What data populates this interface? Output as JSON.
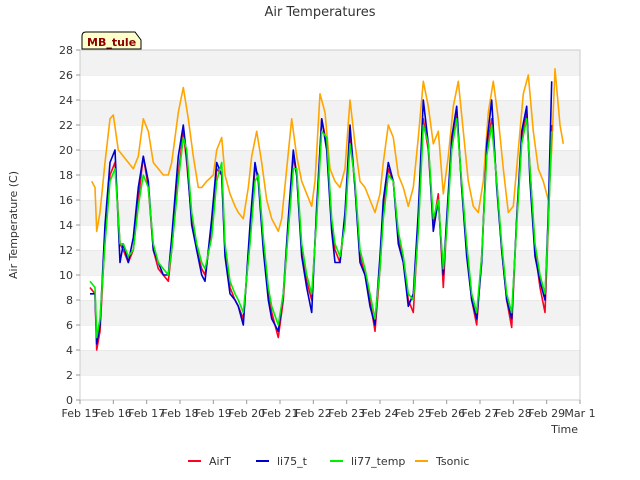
{
  "chart_data": {
    "type": "line",
    "title": "Air Temperatures",
    "xlabel": "Time",
    "ylabel": "Air Temperature (C)",
    "station_badge": "MB_tule",
    "ylim": [
      0,
      28
    ],
    "yticks": [
      0,
      2,
      4,
      6,
      8,
      10,
      12,
      14,
      16,
      18,
      20,
      22,
      24,
      26,
      28
    ],
    "xlim": [
      15,
      30
    ],
    "xticks": [
      15,
      16,
      17,
      18,
      19,
      20,
      21,
      22,
      23,
      24,
      25,
      26,
      27,
      28,
      29,
      30
    ],
    "xtick_labels": [
      "Feb 15",
      "Feb 16",
      "Feb 17",
      "Feb 18",
      "Feb 19",
      "Feb 20",
      "Feb 21",
      "Feb 22",
      "Feb 23",
      "Feb 24",
      "Feb 25",
      "Feb 26",
      "Feb 27",
      "Feb 28",
      "Feb 29",
      "Mar 1"
    ],
    "x_unit": "day of February 2024",
    "grid": "horizontal bands",
    "legend_position": "bottom",
    "series": [
      {
        "name": "AirT",
        "color": "#ff0022",
        "x": [
          15.3,
          15.45,
          15.5,
          15.6,
          15.75,
          15.9,
          16.05,
          16.2,
          16.3,
          16.45,
          16.6,
          16.75,
          16.9,
          17.05,
          17.2,
          17.35,
          17.5,
          17.65,
          17.75,
          17.95,
          18.1,
          18.2,
          18.35,
          18.5,
          18.65,
          18.75,
          18.95,
          19.1,
          19.25,
          19.35,
          19.5,
          19.65,
          19.75,
          19.9,
          20.1,
          20.25,
          20.35,
          20.5,
          20.65,
          20.75,
          20.95,
          21.1,
          21.25,
          21.4,
          21.5,
          21.65,
          21.8,
          21.95,
          22.1,
          22.25,
          22.4,
          22.55,
          22.65,
          22.8,
          22.95,
          23.1,
          23.25,
          23.4,
          23.55,
          23.7,
          23.85,
          24.0,
          24.1,
          24.25,
          24.4,
          24.55,
          24.7,
          24.85,
          25.0,
          25.15,
          25.3,
          25.45,
          25.6,
          25.75,
          25.9,
          26.0,
          26.15,
          26.3,
          26.45,
          26.6,
          26.75,
          26.9,
          27.05,
          27.2,
          27.35,
          27.5,
          27.65,
          27.8,
          27.95,
          28.1,
          28.25,
          28.4,
          28.5,
          28.65,
          28.8,
          28.95,
          29.05,
          29.15
        ],
        "values": [
          9.0,
          8.5,
          4.0,
          5.5,
          13.0,
          18.0,
          19.0,
          12.5,
          12.0,
          11.0,
          12.0,
          16.0,
          19.5,
          17.0,
          12.0,
          10.5,
          10.0,
          9.5,
          12.0,
          18.0,
          21.5,
          19.0,
          14.5,
          12.0,
          10.5,
          10.0,
          13.5,
          18.5,
          18.0,
          12.0,
          9.0,
          8.0,
          7.5,
          6.5,
          13.0,
          18.5,
          18.0,
          12.5,
          8.5,
          7.0,
          5.0,
          8.0,
          14.0,
          19.5,
          18.0,
          12.0,
          9.5,
          8.0,
          15.0,
          22.5,
          20.5,
          14.0,
          12.0,
          11.0,
          14.5,
          21.5,
          17.0,
          11.5,
          10.0,
          8.0,
          5.5,
          10.5,
          15.0,
          18.5,
          17.5,
          13.0,
          11.0,
          8.0,
          7.0,
          14.0,
          22.5,
          20.0,
          14.0,
          16.5,
          9.0,
          14.0,
          20.5,
          23.0,
          17.0,
          12.0,
          8.0,
          6.0,
          11.5,
          20.0,
          22.5,
          17.5,
          12.0,
          8.0,
          5.8,
          14.5,
          21.0,
          23.0,
          18.5,
          12.0,
          9.0,
          7.0,
          14.0,
          22.0
        ]
      },
      {
        "name": "li75_t",
        "color": "#0000cc",
        "x": [
          15.3,
          15.45,
          15.5,
          15.6,
          15.75,
          15.9,
          16.05,
          16.2,
          16.3,
          16.45,
          16.6,
          16.75,
          16.9,
          17.05,
          17.2,
          17.35,
          17.5,
          17.65,
          17.75,
          17.95,
          18.1,
          18.2,
          18.35,
          18.5,
          18.65,
          18.75,
          18.95,
          19.1,
          19.25,
          19.35,
          19.5,
          19.65,
          19.75,
          19.9,
          20.1,
          20.25,
          20.35,
          20.5,
          20.65,
          20.75,
          20.95,
          21.1,
          21.25,
          21.4,
          21.5,
          21.65,
          21.8,
          21.95,
          22.1,
          22.25,
          22.4,
          22.55,
          22.65,
          22.8,
          22.95,
          23.1,
          23.25,
          23.4,
          23.55,
          23.7,
          23.85,
          24.0,
          24.1,
          24.25,
          24.4,
          24.55,
          24.7,
          24.85,
          25.0,
          25.15,
          25.3,
          25.45,
          25.6,
          25.75,
          25.9,
          26.0,
          26.15,
          26.3,
          26.45,
          26.6,
          26.75,
          26.9,
          27.05,
          27.2,
          27.35,
          27.5,
          27.65,
          27.8,
          27.95,
          28.1,
          28.25,
          28.4,
          28.5,
          28.65,
          28.8,
          28.95,
          29.05,
          29.15
        ],
        "values": [
          8.5,
          8.5,
          4.5,
          6.0,
          14.0,
          19.0,
          20.0,
          11.0,
          12.5,
          11.0,
          13.0,
          17.0,
          19.5,
          17.5,
          12.0,
          11.0,
          10.0,
          10.0,
          13.0,
          19.5,
          22.0,
          19.5,
          14.0,
          12.0,
          10.0,
          9.5,
          14.5,
          19.0,
          18.0,
          11.5,
          8.5,
          8.0,
          7.5,
          6.0,
          14.0,
          19.0,
          17.5,
          12.0,
          8.0,
          6.5,
          5.5,
          8.5,
          14.5,
          20.0,
          18.0,
          11.5,
          9.0,
          7.0,
          15.5,
          22.5,
          20.0,
          13.5,
          11.0,
          11.0,
          15.0,
          22.0,
          17.0,
          11.0,
          10.0,
          7.5,
          6.0,
          11.5,
          16.0,
          19.0,
          17.5,
          12.5,
          11.0,
          7.5,
          8.5,
          15.0,
          24.0,
          20.5,
          13.5,
          16.0,
          10.0,
          14.5,
          21.0,
          23.5,
          17.0,
          11.5,
          8.0,
          6.5,
          11.0,
          20.5,
          24.0,
          17.0,
          12.0,
          8.0,
          6.5,
          14.5,
          21.5,
          23.5,
          17.5,
          11.5,
          9.5,
          8.0,
          15.0,
          25.5
        ]
      },
      {
        "name": "li77_temp",
        "color": "#00ee00",
        "x": [
          15.3,
          15.45,
          15.5,
          15.6,
          15.75,
          15.9,
          16.05,
          16.2,
          16.3,
          16.45,
          16.6,
          16.75,
          16.9,
          17.05,
          17.2,
          17.35,
          17.5,
          17.65,
          17.75,
          17.95,
          18.1,
          18.2,
          18.35,
          18.5,
          18.65,
          18.75,
          18.95,
          19.1,
          19.25,
          19.35,
          19.5,
          19.65,
          19.75,
          19.9,
          20.1,
          20.25,
          20.35,
          20.5,
          20.65,
          20.75,
          20.95,
          21.1,
          21.25,
          21.4,
          21.5,
          21.65,
          21.8,
          21.95,
          22.1,
          22.25,
          22.4,
          22.55,
          22.65,
          22.8,
          22.95,
          23.1,
          23.25,
          23.4,
          23.55,
          23.7,
          23.85,
          24.0,
          24.1,
          24.25,
          24.4,
          24.55,
          24.7,
          24.85,
          25.0,
          25.15,
          25.3,
          25.45,
          25.6,
          25.75,
          25.9,
          26.0,
          26.15,
          26.3,
          26.45,
          26.6,
          26.75,
          26.9,
          27.05,
          27.2,
          27.35,
          27.5,
          27.65,
          27.8,
          27.95,
          28.1,
          28.25,
          28.4,
          28.5,
          28.65,
          28.8,
          28.95,
          29.05,
          29.15
        ],
        "values": [
          9.5,
          9.0,
          5.0,
          6.5,
          12.5,
          17.5,
          18.5,
          12.5,
          12.5,
          11.5,
          12.0,
          15.5,
          18.0,
          17.0,
          12.5,
          11.0,
          10.5,
          10.0,
          12.0,
          17.5,
          21.0,
          20.0,
          15.0,
          12.5,
          11.0,
          10.5,
          13.0,
          17.5,
          19.0,
          12.5,
          9.5,
          8.5,
          8.0,
          7.0,
          12.5,
          17.5,
          18.0,
          13.0,
          9.0,
          7.5,
          6.0,
          8.5,
          13.5,
          18.5,
          18.5,
          12.5,
          10.0,
          8.5,
          14.5,
          21.5,
          21.0,
          14.5,
          12.5,
          11.5,
          14.0,
          20.5,
          17.5,
          12.0,
          10.5,
          8.5,
          6.5,
          10.5,
          14.5,
          18.0,
          17.5,
          13.5,
          11.5,
          8.5,
          8.0,
          13.5,
          22.0,
          20.5,
          14.5,
          16.0,
          10.5,
          13.5,
          20.0,
          22.5,
          17.5,
          12.5,
          8.5,
          7.0,
          11.5,
          19.5,
          22.0,
          17.5,
          12.5,
          8.5,
          7.0,
          14.0,
          20.5,
          22.5,
          18.5,
          12.5,
          10.0,
          8.5,
          14.0,
          21.5
        ]
      },
      {
        "name": "Tsonic",
        "color": "#ffa500",
        "x": [
          15.35,
          15.45,
          15.5,
          15.6,
          15.75,
          15.9,
          16.0,
          16.15,
          16.3,
          16.45,
          16.6,
          16.75,
          16.9,
          17.05,
          17.2,
          17.35,
          17.5,
          17.65,
          17.75,
          17.95,
          18.1,
          18.25,
          18.4,
          18.55,
          18.65,
          18.8,
          19.0,
          19.1,
          19.25,
          19.35,
          19.5,
          19.65,
          19.75,
          19.9,
          20.05,
          20.15,
          20.3,
          20.45,
          20.6,
          20.75,
          20.95,
          21.05,
          21.2,
          21.35,
          21.5,
          21.65,
          21.8,
          21.95,
          22.05,
          22.2,
          22.35,
          22.5,
          22.65,
          22.8,
          22.95,
          23.1,
          23.25,
          23.4,
          23.55,
          23.7,
          23.85,
          24.0,
          24.1,
          24.25,
          24.4,
          24.55,
          24.7,
          24.85,
          25.0,
          25.15,
          25.3,
          25.45,
          25.6,
          25.75,
          25.9,
          26.05,
          26.2,
          26.35,
          26.5,
          26.65,
          26.8,
          26.95,
          27.1,
          27.25,
          27.4,
          27.55,
          27.7,
          27.85,
          28.0,
          28.15,
          28.3,
          28.45,
          28.6,
          28.75,
          28.9,
          29.05,
          29.15,
          29.25,
          29.4,
          29.5
        ],
        "values": [
          17.5,
          17.0,
          13.5,
          15.0,
          19.0,
          22.5,
          22.8,
          20.0,
          19.5,
          19.0,
          18.5,
          19.5,
          22.5,
          21.5,
          19.0,
          18.5,
          18.0,
          18.0,
          19.0,
          23.0,
          25.0,
          22.5,
          19.5,
          17.0,
          17.0,
          17.5,
          18.0,
          20.0,
          21.0,
          18.0,
          16.5,
          15.5,
          15.0,
          14.5,
          17.0,
          19.5,
          21.5,
          19.0,
          16.0,
          14.5,
          13.5,
          14.5,
          18.5,
          22.5,
          19.5,
          17.5,
          16.5,
          15.5,
          17.5,
          24.5,
          23.0,
          18.5,
          17.5,
          17.0,
          18.5,
          24.0,
          20.5,
          17.5,
          17.0,
          16.0,
          15.0,
          16.5,
          19.0,
          22.0,
          21.0,
          18.0,
          17.0,
          15.5,
          17.0,
          21.0,
          25.5,
          23.5,
          20.5,
          21.5,
          16.5,
          19.5,
          23.5,
          25.5,
          21.5,
          17.5,
          15.5,
          15.0,
          17.5,
          23.0,
          25.5,
          22.5,
          18.5,
          15.0,
          15.5,
          20.0,
          24.5,
          26.0,
          21.5,
          18.5,
          17.5,
          16.0,
          20.0,
          26.5,
          22.0,
          20.5
        ]
      }
    ]
  }
}
